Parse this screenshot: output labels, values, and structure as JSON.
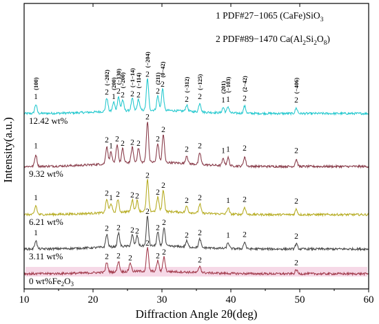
{
  "chart_data": {
    "type": "line",
    "xlabel": "Diffraction Angle 2θ(deg)",
    "ylabel": "Intensity(a.u.)",
    "xlim": [
      10,
      60
    ],
    "x_ticks": [
      "10",
      "20",
      "30",
      "40",
      "50",
      "60"
    ],
    "legend": [
      {
        "number": "1",
        "pdf": "PDF#27−1065",
        "compound": "(CaFe)SiO",
        "sub": "3",
        "tail": ""
      },
      {
        "number": "2",
        "pdf": "PDF#89−1470",
        "compound": "Ca(Al",
        "sub": "2",
        "mid": "Si",
        "sub2": "2",
        "mid2": "O",
        "sub3": "8",
        "tail": ")"
      }
    ],
    "hkl_annotations": [
      {
        "x": 11.7,
        "label": "(100)"
      },
      {
        "x": 22.0,
        "label": "(−202)"
      },
      {
        "x": 23.0,
        "label": "(200)"
      },
      {
        "x": 23.7,
        "label": "(−130)"
      },
      {
        "x": 24.3,
        "label": "(−200)"
      },
      {
        "x": 25.7,
        "label": "(−1−14)"
      },
      {
        "x": 26.6,
        "label": "(−114)"
      },
      {
        "x": 27.9,
        "label": "(−204)"
      },
      {
        "x": 29.4,
        "label": "(211)"
      },
      {
        "x": 30.1,
        "label": "(0−42)"
      },
      {
        "x": 33.6,
        "label": "(−312)"
      },
      {
        "x": 35.5,
        "label": "(−125)"
      },
      {
        "x": 38.9,
        "label": "(201)"
      },
      {
        "x": 39.6,
        "label": "(−103)"
      },
      {
        "x": 42.0,
        "label": "(2−42)"
      },
      {
        "x": 49.5,
        "label": "(−406)"
      }
    ],
    "series": [
      {
        "name": "12.42 wt%",
        "color": "#27c9cf",
        "amplitude": 1.0,
        "peaks": [
          {
            "x": 11.7,
            "label": "1"
          },
          {
            "x": 22.0,
            "label": "2"
          },
          {
            "x": 23.0,
            "label": "1"
          },
          {
            "x": 23.7,
            "label": "2"
          },
          {
            "x": 24.3,
            "label": "2"
          },
          {
            "x": 25.7,
            "label": "2"
          },
          {
            "x": 26.6,
            "label": "2"
          },
          {
            "x": 27.9,
            "label": "2"
          },
          {
            "x": 29.4,
            "label": "2"
          },
          {
            "x": 30.1,
            "label": "2"
          },
          {
            "x": 33.6,
            "label": "2"
          },
          {
            "x": 35.5,
            "label": "2"
          },
          {
            "x": 38.9,
            "label": "1"
          },
          {
            "x": 39.6,
            "label": "1"
          },
          {
            "x": 42.0,
            "label": "2"
          },
          {
            "x": 49.5,
            "label": "2"
          }
        ]
      },
      {
        "name": "9.32 wt%",
        "color": "#8a3e4c",
        "amplitude": 1.3,
        "peaks": [
          {
            "x": 11.7,
            "label": "1"
          },
          {
            "x": 22.0,
            "label": "2"
          },
          {
            "x": 22.6,
            "label": "1"
          },
          {
            "x": 23.5,
            "label": "2"
          },
          {
            "x": 24.3,
            "label": "2"
          },
          {
            "x": 25.7,
            "label": "2"
          },
          {
            "x": 26.6,
            "label": "2"
          },
          {
            "x": 27.9,
            "label": "2"
          },
          {
            "x": 29.4,
            "label": "2"
          },
          {
            "x": 30.2,
            "label": "2"
          },
          {
            "x": 33.6,
            "label": "2"
          },
          {
            "x": 35.5,
            "label": "2"
          },
          {
            "x": 38.9,
            "label": "1"
          },
          {
            "x": 39.6,
            "label": "1"
          },
          {
            "x": 42.0,
            "label": "2"
          },
          {
            "x": 49.5,
            "label": "2"
          }
        ]
      },
      {
        "name": "6.21 wt%",
        "color": "#b7ad25",
        "amplitude": 1.0,
        "peaks": [
          {
            "x": 11.7,
            "label": "1"
          },
          {
            "x": 22.0,
            "label": "2"
          },
          {
            "x": 22.6,
            "label": "1"
          },
          {
            "x": 23.6,
            "label": "2"
          },
          {
            "x": 25.7,
            "label": "2"
          },
          {
            "x": 26.4,
            "label": "2"
          },
          {
            "x": 27.9,
            "label": "2"
          },
          {
            "x": 29.4,
            "label": "2"
          },
          {
            "x": 30.2,
            "label": "2"
          },
          {
            "x": 33.6,
            "label": "2"
          },
          {
            "x": 35.5,
            "label": "2"
          },
          {
            "x": 39.6,
            "label": "1"
          },
          {
            "x": 42.0,
            "label": "2"
          },
          {
            "x": 49.5,
            "label": "2"
          }
        ]
      },
      {
        "name": "3.11 wt%",
        "color": "#4a4a4a",
        "amplitude": 0.95,
        "peaks": [
          {
            "x": 11.7,
            "label": "1"
          },
          {
            "x": 22.0,
            "label": "2"
          },
          {
            "x": 23.7,
            "label": "2"
          },
          {
            "x": 25.7,
            "label": "2"
          },
          {
            "x": 26.4,
            "label": "2"
          },
          {
            "x": 27.9,
            "label": "2"
          },
          {
            "x": 29.4,
            "label": "2"
          },
          {
            "x": 30.3,
            "label": "2"
          },
          {
            "x": 33.6,
            "label": "2"
          },
          {
            "x": 35.5,
            "label": "2"
          },
          {
            "x": 39.6,
            "label": "1"
          },
          {
            "x": 42.0,
            "label": "2"
          },
          {
            "x": 49.5,
            "label": "2"
          }
        ]
      },
      {
        "name": "0 wt%Fe",
        "name_sub": "2",
        "name_tail": "O",
        "name_sub2": "3",
        "color": "#a33d4e",
        "band_color": "#f2c9dd",
        "amplitude": 0.75,
        "peaks": [
          {
            "x": 22.0,
            "label": "2"
          },
          {
            "x": 23.7,
            "label": "2"
          },
          {
            "x": 25.4,
            "label": "2"
          },
          {
            "x": 27.9,
            "label": "2"
          },
          {
            "x": 29.4,
            "label": "2"
          },
          {
            "x": 30.3,
            "label": "2"
          },
          {
            "x": 35.5,
            "label": "2"
          },
          {
            "x": 49.5,
            "label": "2"
          }
        ]
      }
    ]
  }
}
